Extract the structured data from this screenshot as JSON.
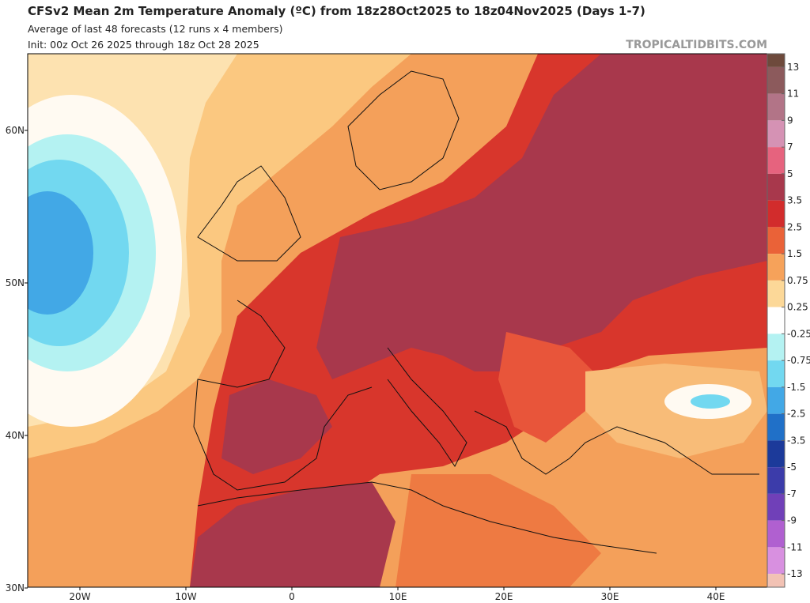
{
  "header": {
    "title": "CFSv2 Mean 2m Temperature Anomaly (ºC) from 18z28Oct2025 to 18z04Nov2025 (Days 1-7)",
    "subtitle": "Average of last 48 forecasts (12 runs x 4 members)",
    "init": "Init: 00z Oct 26 2025 through 18z Oct 28 2025",
    "watermark": "TROPICALTIDBITS.COM"
  },
  "map": {
    "lat_labels": [
      "60N",
      "50N",
      "40N",
      "30N"
    ],
    "lon_labels": [
      "20W",
      "10W",
      "0",
      "10E",
      "20E",
      "30E",
      "40E"
    ]
  },
  "colorbar": {
    "ticks": [
      13,
      11,
      9,
      7,
      5,
      3.5,
      2.5,
      1.5,
      0.75,
      0.25,
      -0.25,
      -0.75,
      -1.5,
      -2.5,
      -3.5,
      -5,
      -7,
      -9,
      -11,
      -13
    ],
    "colors": [
      "#6e4a3c",
      "#8c5a5c",
      "#b27487",
      "#d592b4",
      "#e6637e",
      "#a8384c",
      "#d22c2c",
      "#ea6238",
      "#f6a25a",
      "#fcd898",
      "#ffffff",
      "#b4f2f2",
      "#72d8f0",
      "#42a8e6",
      "#2070c8",
      "#1c3a9a",
      "#3c3caa",
      "#7040b8",
      "#b060d0",
      "#d890e0",
      "#f2c2b4"
    ]
  }
}
